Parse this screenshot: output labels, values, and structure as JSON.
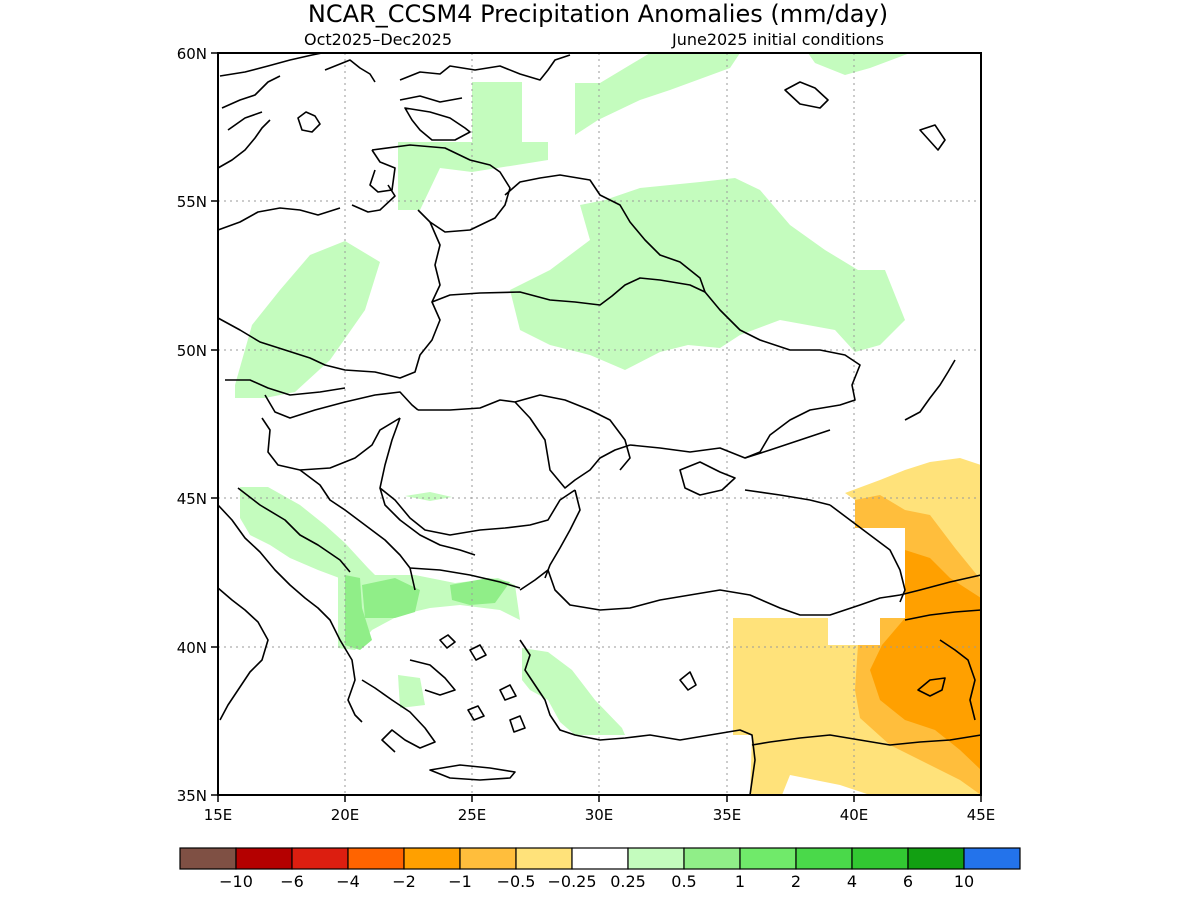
{
  "title": "NCAR_CCSM4 Precipitation Anomalies (mm/day)",
  "subtitle_left": "Oct2025–Dec2025",
  "subtitle_right": "June2025 initial conditions",
  "lat_labels": [
    "60N",
    "55N",
    "50N",
    "45N",
    "40N",
    "35N"
  ],
  "lon_labels": [
    "15E",
    "20E",
    "25E",
    "30E",
    "35E",
    "40E",
    "45E"
  ],
  "colorbar": {
    "colors": [
      "#7f5044",
      "#b40000",
      "#dc1e10",
      "#ff6400",
      "#ffa000",
      "#ffbe3c",
      "#ffe27a",
      "#ffffff",
      "#c4fcbe",
      "#90ee88",
      "#70ea6a",
      "#4ad94a",
      "#32c832",
      "#12a012",
      "#2373eb"
    ],
    "labels": [
      "−10",
      "−6",
      "−4",
      "−2",
      "−1",
      "−0.5",
      "−0.25",
      "0.25",
      "0.5",
      "1",
      "2",
      "4",
      "6",
      "10"
    ]
  },
  "colors": {
    "wet_light": "#c4fcbe",
    "wet_mid": "#90ee88",
    "dry_light": "#ffe27a",
    "dry_mid": "#ffbe3c",
    "dry_strong": "#ffa000",
    "coast": "#000000",
    "grid": "#9a9a9a"
  }
}
